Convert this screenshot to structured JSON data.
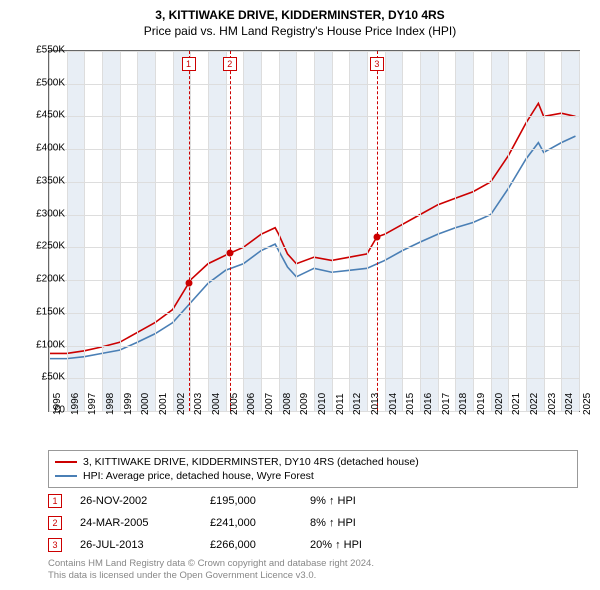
{
  "title_line1": "3, KITTIWAKE DRIVE, KIDDERMINSTER, DY10 4RS",
  "title_line2": "Price paid vs. HM Land Registry's House Price Index (HPI)",
  "chart": {
    "y_min": 0,
    "y_max": 550000,
    "y_step": 50000,
    "y_labels": [
      "£0",
      "£50K",
      "£100K",
      "£150K",
      "£200K",
      "£250K",
      "£300K",
      "£350K",
      "£400K",
      "£450K",
      "£500K",
      "£550K"
    ],
    "x_min": 1995,
    "x_max": 2025,
    "x_labels": [
      "1995",
      "1996",
      "1997",
      "1998",
      "1999",
      "2000",
      "2001",
      "2002",
      "2003",
      "2004",
      "2005",
      "2006",
      "2007",
      "2008",
      "2009",
      "2010",
      "2011",
      "2012",
      "2013",
      "2014",
      "2015",
      "2016",
      "2017",
      "2018",
      "2019",
      "2020",
      "2021",
      "2022",
      "2023",
      "2024",
      "2025"
    ],
    "grid_color": "#dddddd",
    "band_color": "#e8eef5",
    "series": {
      "property": {
        "color": "#cc0000",
        "label": "3, KITTIWAKE DRIVE, KIDDERMINSTER, DY10 4RS (detached house)",
        "points": [
          [
            1995,
            88000
          ],
          [
            1996,
            88000
          ],
          [
            1997,
            92000
          ],
          [
            1998,
            98000
          ],
          [
            1999,
            105000
          ],
          [
            2000,
            120000
          ],
          [
            2001,
            135000
          ],
          [
            2002,
            155000
          ],
          [
            2002.9,
            195000
          ],
          [
            2003,
            200000
          ],
          [
            2004,
            225000
          ],
          [
            2005.23,
            241000
          ],
          [
            2006,
            250000
          ],
          [
            2007,
            270000
          ],
          [
            2007.8,
            280000
          ],
          [
            2008,
            270000
          ],
          [
            2008.5,
            240000
          ],
          [
            2009,
            225000
          ],
          [
            2010,
            235000
          ],
          [
            2011,
            230000
          ],
          [
            2012,
            235000
          ],
          [
            2013,
            240000
          ],
          [
            2013.56,
            266000
          ],
          [
            2014,
            270000
          ],
          [
            2015,
            285000
          ],
          [
            2016,
            300000
          ],
          [
            2017,
            315000
          ],
          [
            2018,
            325000
          ],
          [
            2019,
            335000
          ],
          [
            2020,
            350000
          ],
          [
            2021,
            390000
          ],
          [
            2022,
            440000
          ],
          [
            2022.7,
            470000
          ],
          [
            2023,
            450000
          ],
          [
            2024,
            455000
          ],
          [
            2024.8,
            450000
          ]
        ]
      },
      "hpi": {
        "color": "#4a7fb5",
        "label": "HPI: Average price, detached house, Wyre Forest",
        "points": [
          [
            1995,
            80000
          ],
          [
            1996,
            80000
          ],
          [
            1997,
            83000
          ],
          [
            1998,
            88000
          ],
          [
            1999,
            93000
          ],
          [
            2000,
            105000
          ],
          [
            2001,
            118000
          ],
          [
            2002,
            135000
          ],
          [
            2003,
            165000
          ],
          [
            2004,
            195000
          ],
          [
            2005,
            215000
          ],
          [
            2006,
            225000
          ],
          [
            2007,
            245000
          ],
          [
            2007.8,
            255000
          ],
          [
            2008,
            245000
          ],
          [
            2008.5,
            220000
          ],
          [
            2009,
            205000
          ],
          [
            2010,
            218000
          ],
          [
            2011,
            212000
          ],
          [
            2012,
            215000
          ],
          [
            2013,
            218000
          ],
          [
            2014,
            230000
          ],
          [
            2015,
            245000
          ],
          [
            2016,
            258000
          ],
          [
            2017,
            270000
          ],
          [
            2018,
            280000
          ],
          [
            2019,
            288000
          ],
          [
            2020,
            300000
          ],
          [
            2021,
            340000
          ],
          [
            2022,
            385000
          ],
          [
            2022.7,
            410000
          ],
          [
            2023,
            395000
          ],
          [
            2024,
            410000
          ],
          [
            2024.8,
            420000
          ]
        ]
      }
    },
    "markers": [
      {
        "n": "1",
        "year": 2002.9,
        "value": 195000
      },
      {
        "n": "2",
        "year": 2005.23,
        "value": 241000
      },
      {
        "n": "3",
        "year": 2013.56,
        "value": 266000
      }
    ]
  },
  "legend": {
    "line1_color": "#cc0000",
    "line2_color": "#4a7fb5"
  },
  "sales": [
    {
      "n": "1",
      "date": "26-NOV-2002",
      "price": "£195,000",
      "diff": "9% ↑ HPI"
    },
    {
      "n": "2",
      "date": "24-MAR-2005",
      "price": "£241,000",
      "diff": "8% ↑ HPI"
    },
    {
      "n": "3",
      "date": "26-JUL-2013",
      "price": "£266,000",
      "diff": "20% ↑ HPI"
    }
  ],
  "footer_line1": "Contains HM Land Registry data © Crown copyright and database right 2024.",
  "footer_line2": "This data is licensed under the Open Government Licence v3.0."
}
